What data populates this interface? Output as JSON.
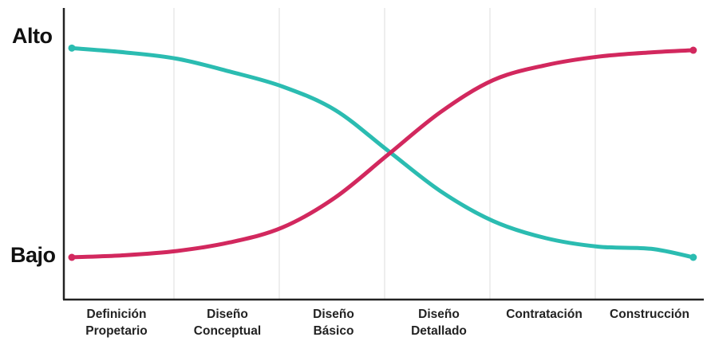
{
  "chart_data": {
    "type": "line",
    "categories": [
      {
        "line1": "Definición",
        "line2": "Propetario"
      },
      {
        "line1": "Diseño",
        "line2": "Conceptual"
      },
      {
        "line1": "Diseño",
        "line2": "Básico"
      },
      {
        "line1": "Diseño",
        "line2": "Detallado"
      },
      {
        "line1": "Contratación",
        "line2": ""
      },
      {
        "line1": "Construcción",
        "line2": ""
      }
    ],
    "y_labels": {
      "high": "Alto",
      "low": "Bajo"
    },
    "ylim": [
      0,
      1
    ],
    "grid": "vertical",
    "legend": "none",
    "series": [
      {
        "color": "#2bbcb1",
        "points": [
          [
            0,
            0.98
          ],
          [
            0.5,
            0.96
          ],
          [
            1,
            0.93
          ],
          [
            1.5,
            0.87
          ],
          [
            2,
            0.8
          ],
          [
            2.5,
            0.69
          ],
          [
            3,
            0.5
          ],
          [
            3.5,
            0.31
          ],
          [
            4,
            0.17
          ],
          [
            4.5,
            0.09
          ],
          [
            5,
            0.05
          ],
          [
            5.5,
            0.04
          ],
          [
            5.9,
            0.0
          ]
        ]
      },
      {
        "color": "#d2285e",
        "points": [
          [
            0,
            0.0
          ],
          [
            0.5,
            0.01
          ],
          [
            1,
            0.03
          ],
          [
            1.5,
            0.07
          ],
          [
            2,
            0.14
          ],
          [
            2.5,
            0.28
          ],
          [
            3,
            0.48
          ],
          [
            3.5,
            0.68
          ],
          [
            4,
            0.83
          ],
          [
            4.5,
            0.9
          ],
          [
            5,
            0.94
          ],
          [
            5.5,
            0.96
          ],
          [
            5.9,
            0.97
          ]
        ]
      }
    ]
  }
}
